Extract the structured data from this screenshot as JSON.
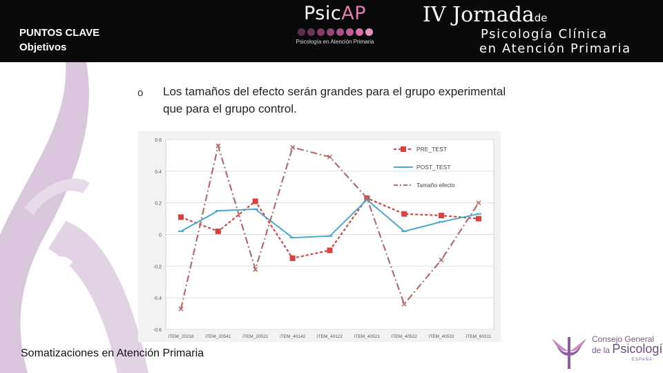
{
  "header": {
    "title_line1": "PUNTOS CLAVE",
    "title_line2": "Objetivos",
    "psicap": {
      "name_prefix": "Psic",
      "name_suffix": "AP",
      "subtitle": "Psicología en Atención Primaria"
    },
    "jornada": {
      "line1": "IV Jornada",
      "line1_suffix": "de",
      "line2": "Psicología Clínica",
      "line3": "en Atención Primaria"
    }
  },
  "content": {
    "bullet_marker": "o",
    "bullet_text": "Los tamaños del efecto serán grandes para el grupo experimental que para el grupo control."
  },
  "chart_data": {
    "type": "line",
    "categories": [
      "ITEM_20218",
      "ITEM_20541",
      "ITEM_20521",
      "ITEM_40142",
      "ITEM_40122",
      "ITEM_40521",
      "ITEM_40522",
      "ITEM_40532",
      "ITEM_60211"
    ],
    "series": [
      {
        "name": "PRE_TEST",
        "color": "#d9413f",
        "values": [
          0.11,
          0.02,
          0.21,
          -0.15,
          -0.1,
          0.23,
          0.13,
          0.12,
          0.1
        ]
      },
      {
        "name": "POST_TEST",
        "color": "#4aa9c9",
        "values": [
          0.02,
          0.15,
          0.16,
          -0.02,
          -0.01,
          0.22,
          0.02,
          0.08,
          0.13
        ]
      },
      {
        "name": "Tamaño efecto",
        "color": "#b46a6a",
        "values": [
          -0.47,
          0.56,
          -0.22,
          0.55,
          0.49,
          0.23,
          -0.44,
          -0.16,
          0.2
        ]
      }
    ],
    "yticks": [
      "0.6",
      "0.4",
      "0.2",
      "0",
      "-0.2",
      "-0.4",
      "-0.6"
    ],
    "ylim": [
      -0.6,
      0.6
    ],
    "grid": true,
    "legend": "top-right"
  },
  "footer": {
    "text": "Somatizaciones en Atención Primaria",
    "org_line1": "Consejo General",
    "org_line2_prefix": "de la ",
    "org_line2_big": "Psicología",
    "org_country": "ESPAÑA"
  },
  "colors": {
    "header_bg": "#0a0a0a",
    "accent_pink": "#e27fb0",
    "purple": "#7a5a90",
    "deco_lilac": "#d9c6dc"
  }
}
